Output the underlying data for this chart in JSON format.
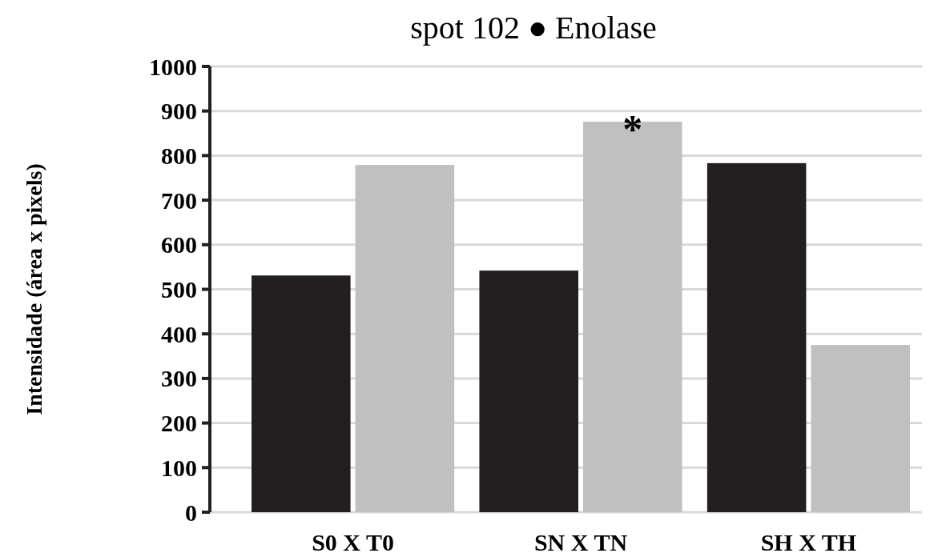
{
  "chart_data": {
    "type": "bar",
    "title": "spot 102 ● Enolase",
    "ylabel": "Intensidade (área x pixels)",
    "categories": [
      "S0 X T0",
      "SN X TN",
      "SH X TH"
    ],
    "series": [
      {
        "color": "#231f20",
        "values": [
          531,
          542,
          783
        ]
      },
      {
        "color": "#c0c0c0",
        "values": [
          779,
          876,
          375
        ]
      }
    ],
    "ylim": [
      0,
      1000
    ],
    "yticks": [
      0,
      100,
      200,
      300,
      400,
      500,
      600,
      700,
      800,
      900,
      1000
    ],
    "grid": "y",
    "annotations": [
      "*"
    ]
  }
}
